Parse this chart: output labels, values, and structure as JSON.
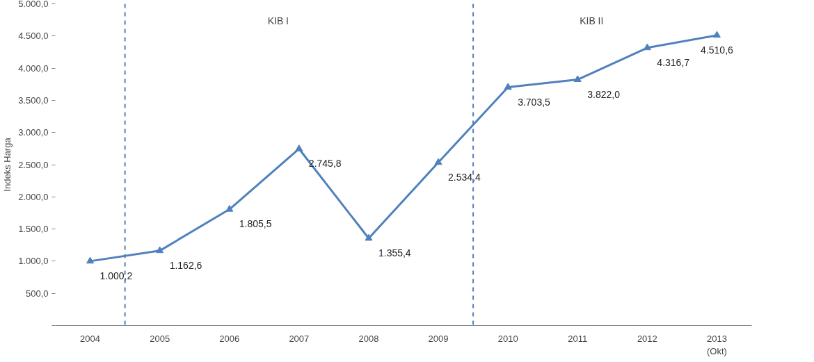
{
  "chart_data": {
    "type": "line",
    "ylabel": "Indeks Harga",
    "categories": [
      "2004",
      "2005",
      "2006",
      "2007",
      "2008",
      "2009",
      "2010",
      "2011",
      "2012",
      "2013 (Okt)"
    ],
    "series": [
      {
        "color": "#4f81bd",
        "values": [
          1000.2,
          1162.6,
          1805.5,
          2745.8,
          1355.4,
          2534.4,
          3703.5,
          3822.0,
          4316.7,
          4510.6
        ],
        "value_labels": [
          "1.000,2",
          "1.162,6",
          "1.805,5",
          "2.745,8",
          "1.355,4",
          "2.534,4",
          "3.703,5",
          "3.822,0",
          "4.316,7",
          "4.510,6"
        ]
      }
    ],
    "ylim": [
      0,
      5000
    ],
    "yticks": [
      {
        "value": 0,
        "label": null
      },
      {
        "value": 500,
        "label": "500,0"
      },
      {
        "value": 1000,
        "label": "1.000,0"
      },
      {
        "value": 1500,
        "label": "1.500,0"
      },
      {
        "value": 2000,
        "label": "2.000,0"
      },
      {
        "value": 2500,
        "label": "2.500,0"
      },
      {
        "value": 3000,
        "label": "3.000,0"
      },
      {
        "value": 3500,
        "label": "3.500,0"
      },
      {
        "value": 4000,
        "label": "4.000,0"
      },
      {
        "value": 4500,
        "label": "4.500,0"
      },
      {
        "value": 5000,
        "label": "5.000,0"
      }
    ],
    "annotations": [
      "KIB I",
      "KIB II"
    ],
    "marker": "triangle",
    "line_style": "solid",
    "grid": false
  }
}
